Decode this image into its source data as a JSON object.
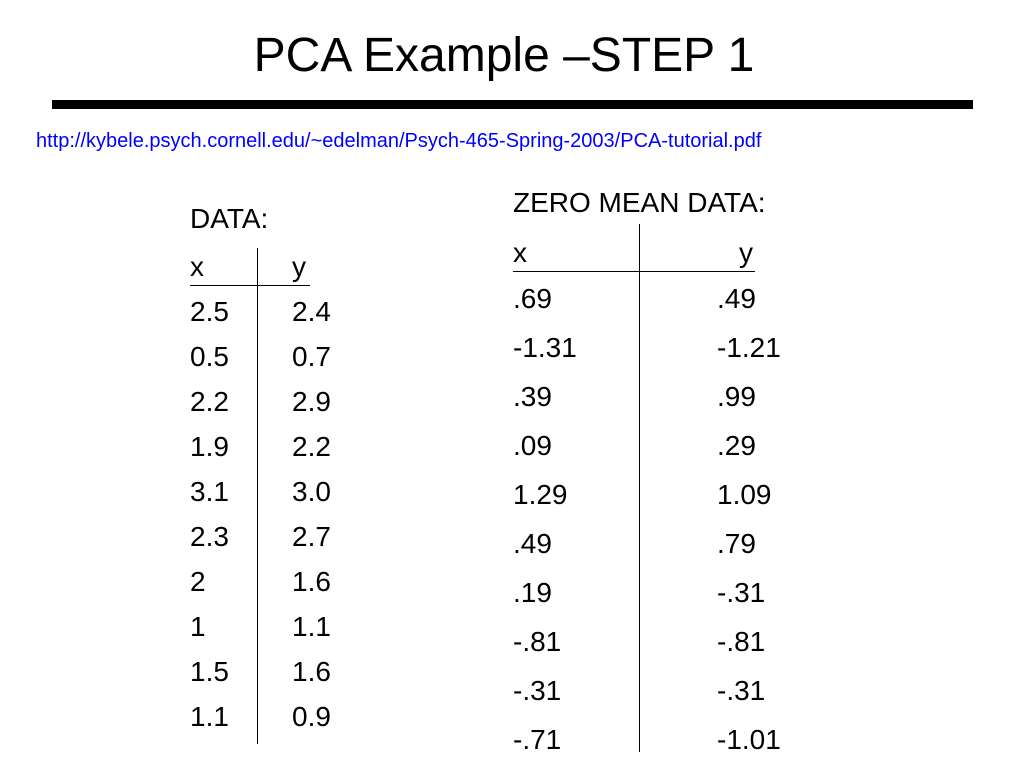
{
  "slide": {
    "title": "PCA Example –STEP 1",
    "url": "http://kybele.psych.cornell.edu/~edelman/Psych-465-Spring-2003/PCA-tutorial.pdf",
    "link_color": "#0000ff"
  },
  "data_table": {
    "heading": "DATA:",
    "columns": [
      "x",
      "y"
    ],
    "rows": [
      [
        "2.5",
        "2.4"
      ],
      [
        "0.5",
        "0.7"
      ],
      [
        "2.2",
        "2.9"
      ],
      [
        "1.9",
        "2.2"
      ],
      [
        "3.1",
        "3.0"
      ],
      [
        "2.3",
        "2.7"
      ],
      [
        "2",
        "1.6"
      ],
      [
        "1",
        "1.1"
      ],
      [
        "1.5",
        "1.6"
      ],
      [
        "1.1",
        "0.9"
      ]
    ]
  },
  "zero_mean_table": {
    "heading": "ZERO MEAN DATA:",
    "columns": [
      "x",
      "y"
    ],
    "rows": [
      [
        ".69",
        ".49"
      ],
      [
        "-1.31",
        "-1.21"
      ],
      [
        ".39",
        ".99"
      ],
      [
        ".09",
        ".29"
      ],
      [
        "1.29",
        "1.09"
      ],
      [
        ".49",
        ".79"
      ],
      [
        ".19",
        "-.31"
      ],
      [
        "-.81",
        "-.81"
      ],
      [
        "-.31",
        "-.31"
      ],
      [
        "-.71",
        "-1.01"
      ]
    ]
  }
}
